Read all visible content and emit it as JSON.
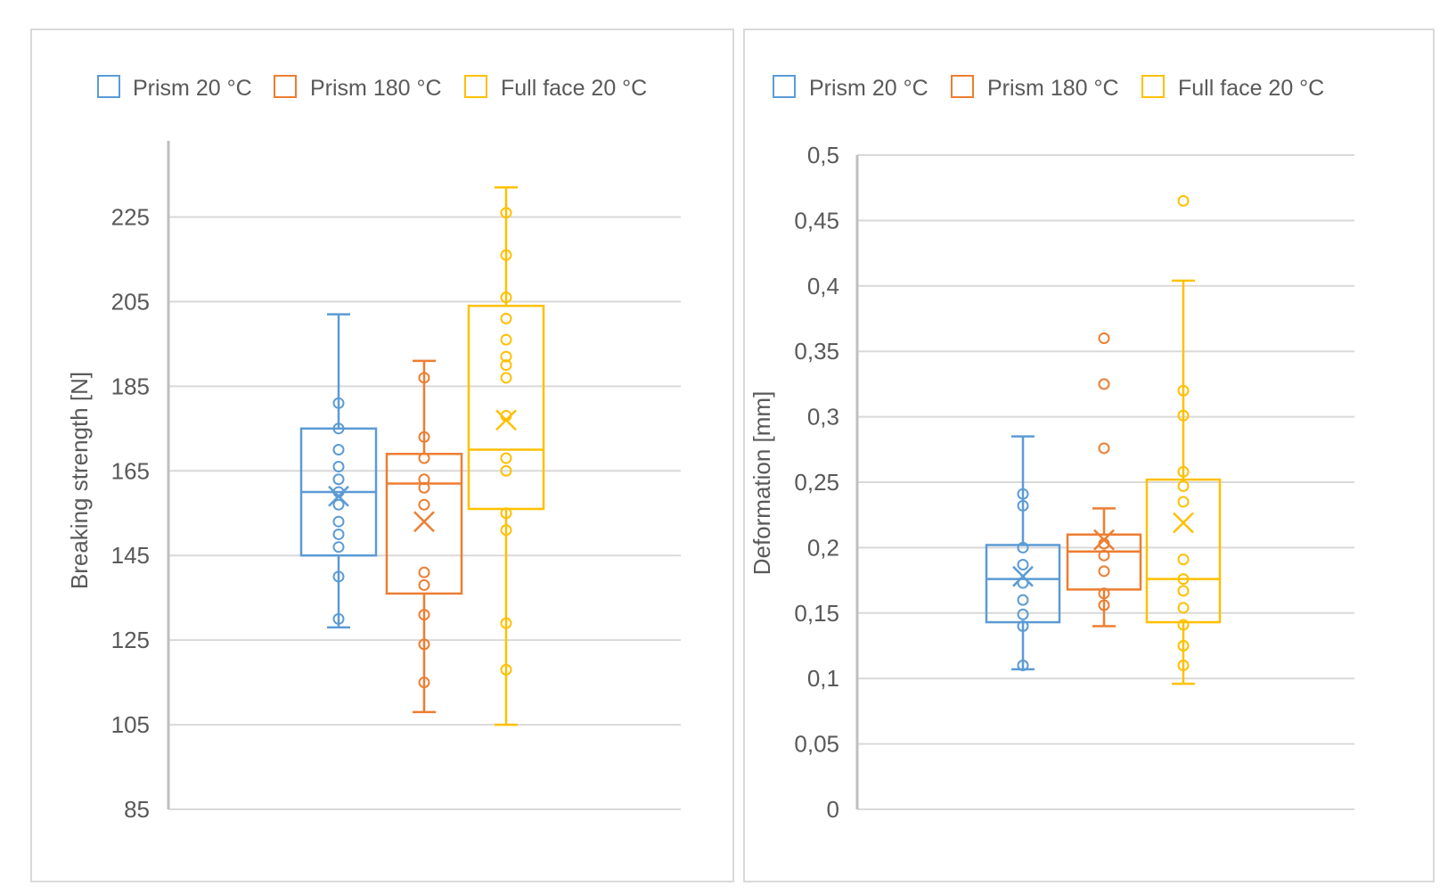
{
  "chart_data": [
    {
      "type": "boxplot",
      "ylabel": "Breaking strength [N]",
      "ylim": [
        85,
        245
      ],
      "yticks": [
        "85",
        "105",
        "125",
        "145",
        "165",
        "185",
        "205",
        "225"
      ],
      "ytick_values": [
        85,
        105,
        125,
        145,
        165,
        185,
        205,
        225
      ],
      "grid": true,
      "legend_position": "top",
      "series": [
        {
          "name": "Prism 20 °C",
          "color": "#5b9bd5",
          "whisker_low": 128,
          "q1": 145,
          "median": 160,
          "q3": 175,
          "whisker_high": 202,
          "mean": 159,
          "points": [
            130,
            140,
            147,
            150,
            153,
            157,
            160,
            163,
            166,
            170,
            175,
            181
          ]
        },
        {
          "name": "Prism 180 °C",
          "color": "#ed7d31",
          "whisker_low": 108,
          "q1": 136,
          "median": 162,
          "q3": 169,
          "whisker_high": 191,
          "mean": 153,
          "points": [
            115,
            124,
            131,
            138,
            141,
            157,
            161,
            163,
            168,
            173,
            187
          ]
        },
        {
          "name": "Full face 20 °C",
          "color": "#ffc000",
          "whisker_low": 105,
          "q1": 156,
          "median": 170,
          "q3": 204,
          "whisker_high": 232,
          "mean": 177,
          "points": [
            118,
            129,
            151,
            155,
            165,
            168,
            178,
            187,
            190,
            192,
            196,
            201,
            206,
            216,
            226
          ]
        }
      ]
    },
    {
      "type": "boxplot",
      "ylabel": "Deformation [mm]",
      "ylim": [
        0,
        0.5
      ],
      "yticks": [
        "0",
        "0,05",
        "0,1",
        "0,15",
        "0,2",
        "0,25",
        "0,3",
        "0,35",
        "0,4",
        "0,45",
        "0,5"
      ],
      "ytick_values": [
        0,
        0.05,
        0.1,
        0.15,
        0.2,
        0.25,
        0.3,
        0.35,
        0.4,
        0.45,
        0.5
      ],
      "grid": true,
      "legend_position": "top",
      "series": [
        {
          "name": "Prism 20 °C",
          "color": "#5b9bd5",
          "whisker_low": 0.107,
          "q1": 0.143,
          "median": 0.176,
          "q3": 0.202,
          "whisker_high": 0.285,
          "mean": 0.178,
          "points": [
            0.11,
            0.14,
            0.149,
            0.16,
            0.173,
            0.187,
            0.2,
            0.232,
            0.241
          ]
        },
        {
          "name": "Prism 180 °C",
          "color": "#ed7d31",
          "whisker_low": 0.14,
          "q1": 0.168,
          "median": 0.197,
          "q3": 0.21,
          "whisker_high": 0.23,
          "mean": 0.206,
          "points": [
            0.156,
            0.165,
            0.182,
            0.194,
            0.203,
            0.276,
            0.325,
            0.36
          ]
        },
        {
          "name": "Full face 20 °C",
          "color": "#ffc000",
          "whisker_low": 0.096,
          "q1": 0.143,
          "median": 0.176,
          "q3": 0.252,
          "whisker_high": 0.404,
          "mean": 0.219,
          "points": [
            0.11,
            0.125,
            0.141,
            0.154,
            0.167,
            0.176,
            0.191,
            0.235,
            0.247,
            0.258,
            0.301,
            0.32,
            0.465
          ]
        }
      ]
    }
  ]
}
